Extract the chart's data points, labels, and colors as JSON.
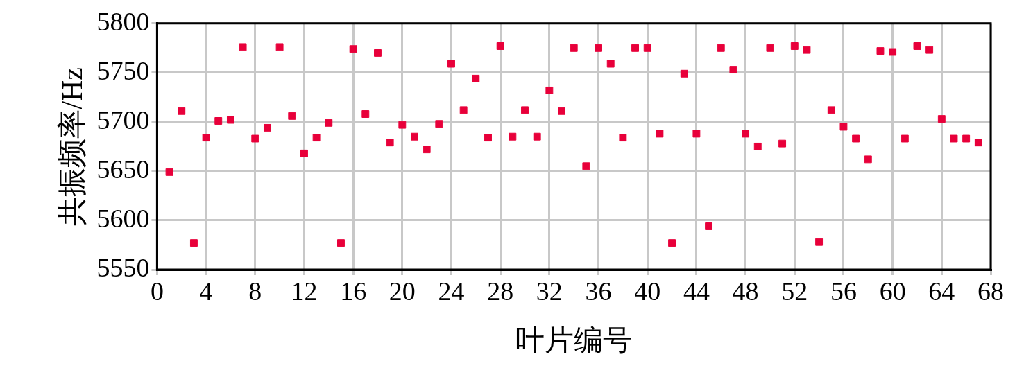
{
  "chart_data": {
    "type": "scatter",
    "xlabel": "叶片编号",
    "ylabel": "共振频率/Hz",
    "x": [
      1,
      2,
      3,
      4,
      5,
      6,
      7,
      8,
      9,
      10,
      11,
      12,
      13,
      14,
      15,
      16,
      17,
      18,
      19,
      20,
      21,
      22,
      23,
      24,
      25,
      26,
      27,
      28,
      29,
      30,
      31,
      32,
      33,
      34,
      35,
      36,
      37,
      38,
      39,
      40,
      41,
      42,
      43,
      44,
      45,
      46,
      47,
      48,
      49,
      50,
      51,
      52,
      53,
      54,
      55,
      56,
      57,
      58,
      59,
      60,
      61,
      62,
      63,
      64,
      65,
      66,
      67
    ],
    "series": [
      {
        "color": "#e8003a",
        "values": [
          5649,
          5711,
          5577,
          5684,
          5701,
          5702,
          5776,
          5683,
          5694,
          5776,
          5706,
          5668,
          5684,
          5699,
          5577,
          5774,
          5708,
          5770,
          5679,
          5697,
          5685,
          5672,
          5698,
          5759,
          5712,
          5744,
          5684,
          5777,
          5685,
          5712,
          5685,
          5732,
          5711,
          5775,
          5655,
          5775,
          5759,
          5684,
          5775,
          5775,
          5688,
          5577,
          5749,
          5688,
          5594,
          5775,
          5753,
          5688,
          5675,
          5775,
          5678,
          5777,
          5773,
          5578,
          5712,
          5695,
          5683,
          5662,
          5772,
          5771,
          5683,
          5777,
          5773,
          5703,
          5683,
          5683,
          5679
        ]
      }
    ],
    "xlim": [
      0,
      68
    ],
    "xticks": [
      0,
      4,
      8,
      12,
      16,
      20,
      24,
      28,
      32,
      36,
      40,
      44,
      48,
      52,
      56,
      60,
      64,
      68
    ],
    "ylim": [
      5550,
      5800
    ],
    "yticks": [
      5550,
      5600,
      5650,
      5700,
      5750,
      5800
    ],
    "grid": true,
    "marker": "square",
    "legend": false
  }
}
